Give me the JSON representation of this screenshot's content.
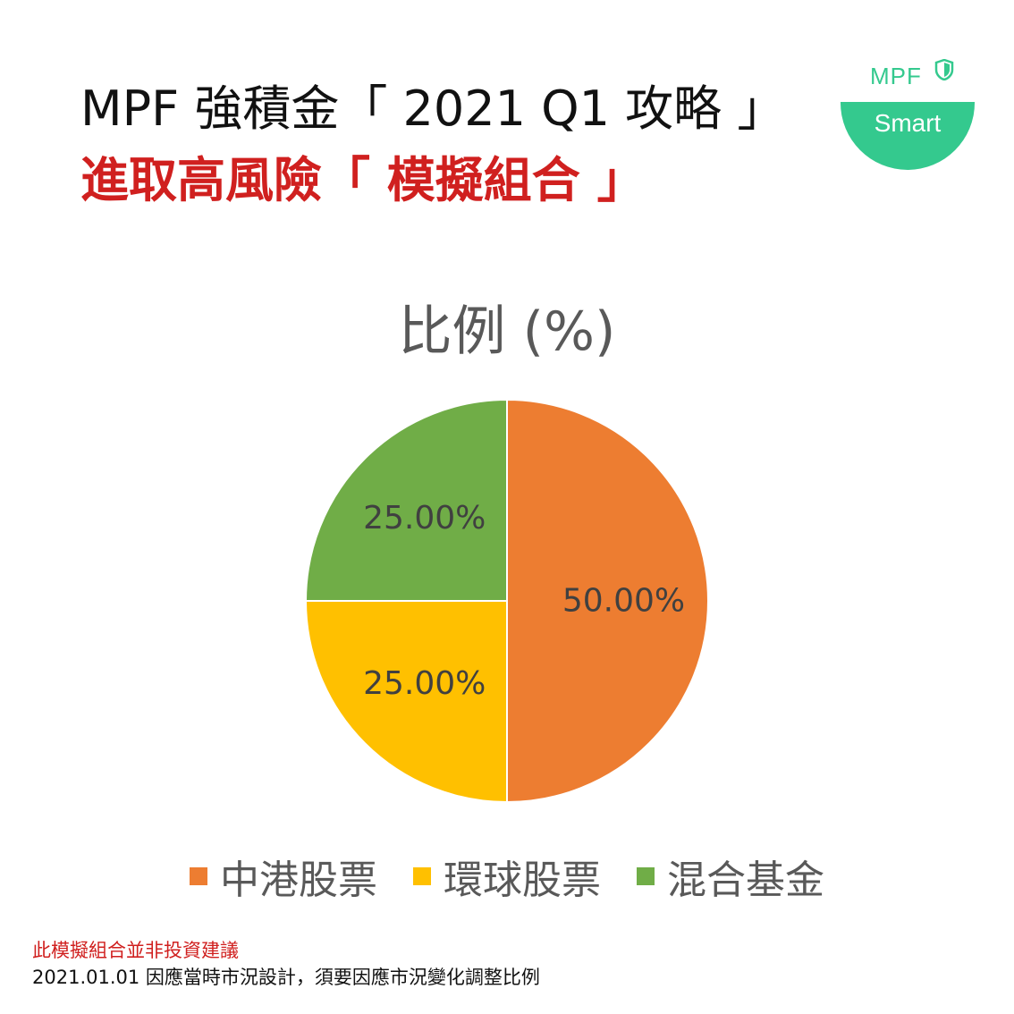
{
  "header": {
    "title_line1": "MPF 強積金「 2021 Q1 攻略 」",
    "title_line2": "進取高風險「 模擬組合 」"
  },
  "logo": {
    "mpf_text": "MPF",
    "badge_text": "Smart",
    "color": "#34c98e"
  },
  "chart_data": {
    "type": "pie",
    "title": "比例 (%)",
    "slices": [
      {
        "name": "中港股票",
        "value": 50.0,
        "label": "50.00%",
        "color": "#ED7D31"
      },
      {
        "name": "環球股票",
        "value": 25.0,
        "label": "25.00%",
        "color": "#FFC000"
      },
      {
        "name": "混合基金",
        "value": 25.0,
        "label": "25.00%",
        "color": "#70AD47"
      }
    ],
    "legend_position": "bottom"
  },
  "footnotes": {
    "disclaimer": "此模擬組合並非投資建議",
    "note": "2021.01.01 因應當時市況設計，須要因應市況變化調整比例"
  }
}
